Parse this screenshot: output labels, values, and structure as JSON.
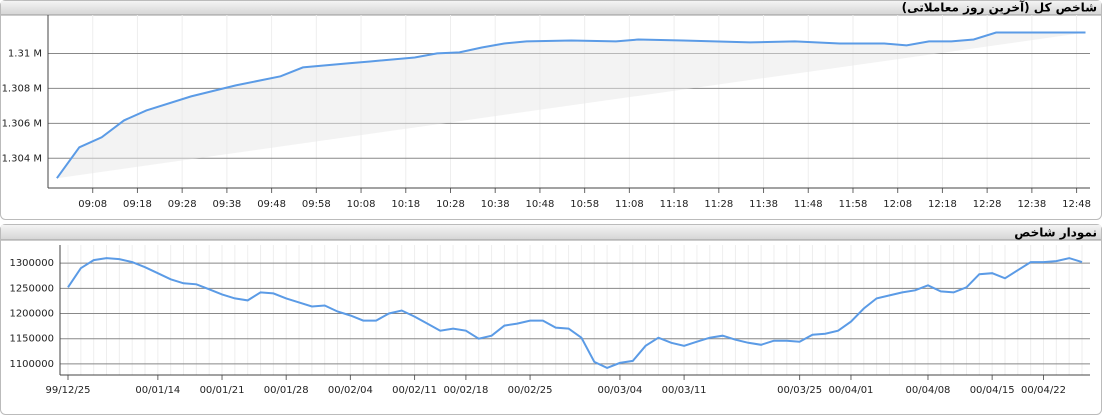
{
  "chart_data": [
    {
      "type": "line",
      "title": "شاخص کل (آخرین روز معاملاتی)",
      "color": "#5b9be6",
      "x": [
        "09:00",
        "09:05",
        "09:10",
        "09:15",
        "09:20",
        "09:30",
        "09:40",
        "09:50",
        "09:55",
        "10:05",
        "10:10",
        "10:20",
        "10:25",
        "10:30",
        "10:35",
        "10:40",
        "10:45",
        "10:55",
        "11:05",
        "11:10",
        "11:20",
        "11:35",
        "11:45",
        "11:55",
        "12:05",
        "12:10",
        "12:15",
        "12:20",
        "12:25",
        "12:30",
        "12:50"
      ],
      "values": [
        1302860,
        1304630,
        1305200,
        1306170,
        1306740,
        1307540,
        1308170,
        1308690,
        1309200,
        1309430,
        1309540,
        1309770,
        1310000,
        1310060,
        1310340,
        1310570,
        1310690,
        1310740,
        1310690,
        1310800,
        1310740,
        1310630,
        1310690,
        1310570,
        1310570,
        1310460,
        1310690,
        1310690,
        1310800,
        1311200,
        1311200
      ],
      "xlim": [
        "08:58",
        "12:51"
      ],
      "xticks": [
        "09:08",
        "09:18",
        "09:28",
        "09:38",
        "09:48",
        "09:58",
        "10:08",
        "10:18",
        "10:28",
        "10:38",
        "10:48",
        "10:58",
        "11:08",
        "11:18",
        "11:28",
        "11:38",
        "11:48",
        "11:58",
        "12:08",
        "12:18",
        "12:28",
        "12:38",
        "12:48"
      ],
      "ylim": [
        1302300,
        1312200
      ],
      "yticks": [
        {
          "value": 1304000,
          "label": "1.304 M"
        },
        {
          "value": 1306000,
          "label": "1.306 M"
        },
        {
          "value": 1308000,
          "label": "1.308 M"
        },
        {
          "value": 1310000,
          "label": "1.31 M"
        }
      ],
      "grid": true
    },
    {
      "type": "line",
      "title": "نمودار شاخص",
      "color": "#5b9be6",
      "categories": [
        "99/12/25",
        null,
        null,
        null,
        null,
        null,
        null,
        "00/01/14",
        null,
        null,
        null,
        null,
        "00/01/21",
        null,
        null,
        null,
        null,
        "00/01/28",
        null,
        null,
        null,
        null,
        "00/02/04",
        null,
        null,
        null,
        null,
        "00/02/11",
        null,
        null,
        null,
        "00/02/18",
        null,
        null,
        null,
        null,
        "00/02/25",
        null,
        null,
        null,
        null,
        null,
        null,
        "00/03/04",
        null,
        null,
        null,
        null,
        "00/03/11",
        null,
        null,
        null,
        null,
        null,
        null,
        null,
        null,
        "00/03/25",
        null,
        null,
        null,
        "00/04/01",
        null,
        null,
        null,
        null,
        null,
        "00/04/08",
        null,
        null,
        null,
        null,
        "00/04/15",
        null,
        null,
        null,
        "00/04/22",
        null,
        null,
        null
      ],
      "values": [
        1252000,
        1290000,
        1306000,
        1310000,
        1308000,
        1302000,
        1292000,
        1280000,
        1268000,
        1260000,
        1258000,
        1248000,
        1238000,
        1230000,
        1226000,
        1242000,
        1240000,
        1230000,
        1222000,
        1214000,
        1216000,
        1204000,
        1196000,
        1186000,
        1186000,
        1200000,
        1206000,
        1194000,
        1180000,
        1166000,
        1170000,
        1166000,
        1150000,
        1156000,
        1176000,
        1180000,
        1186000,
        1186000,
        1172000,
        1170000,
        1152000,
        1104000,
        1092000,
        1102000,
        1106000,
        1136000,
        1152000,
        1142000,
        1136000,
        1144000,
        1152000,
        1156000,
        1148000,
        1142000,
        1138000,
        1146000,
        1146000,
        1144000,
        1158000,
        1160000,
        1166000,
        1184000,
        1210000,
        1230000,
        1236000,
        1242000,
        1246000,
        1256000,
        1244000,
        1242000,
        1252000,
        1278000,
        1280000,
        1270000,
        1286000,
        1302000,
        1302000,
        1304000,
        1310000,
        1302000
      ],
      "ylim": [
        1078000,
        1336000
      ],
      "yticks": [
        1100000,
        1150000,
        1200000,
        1250000,
        1300000
      ],
      "grid": true
    }
  ]
}
